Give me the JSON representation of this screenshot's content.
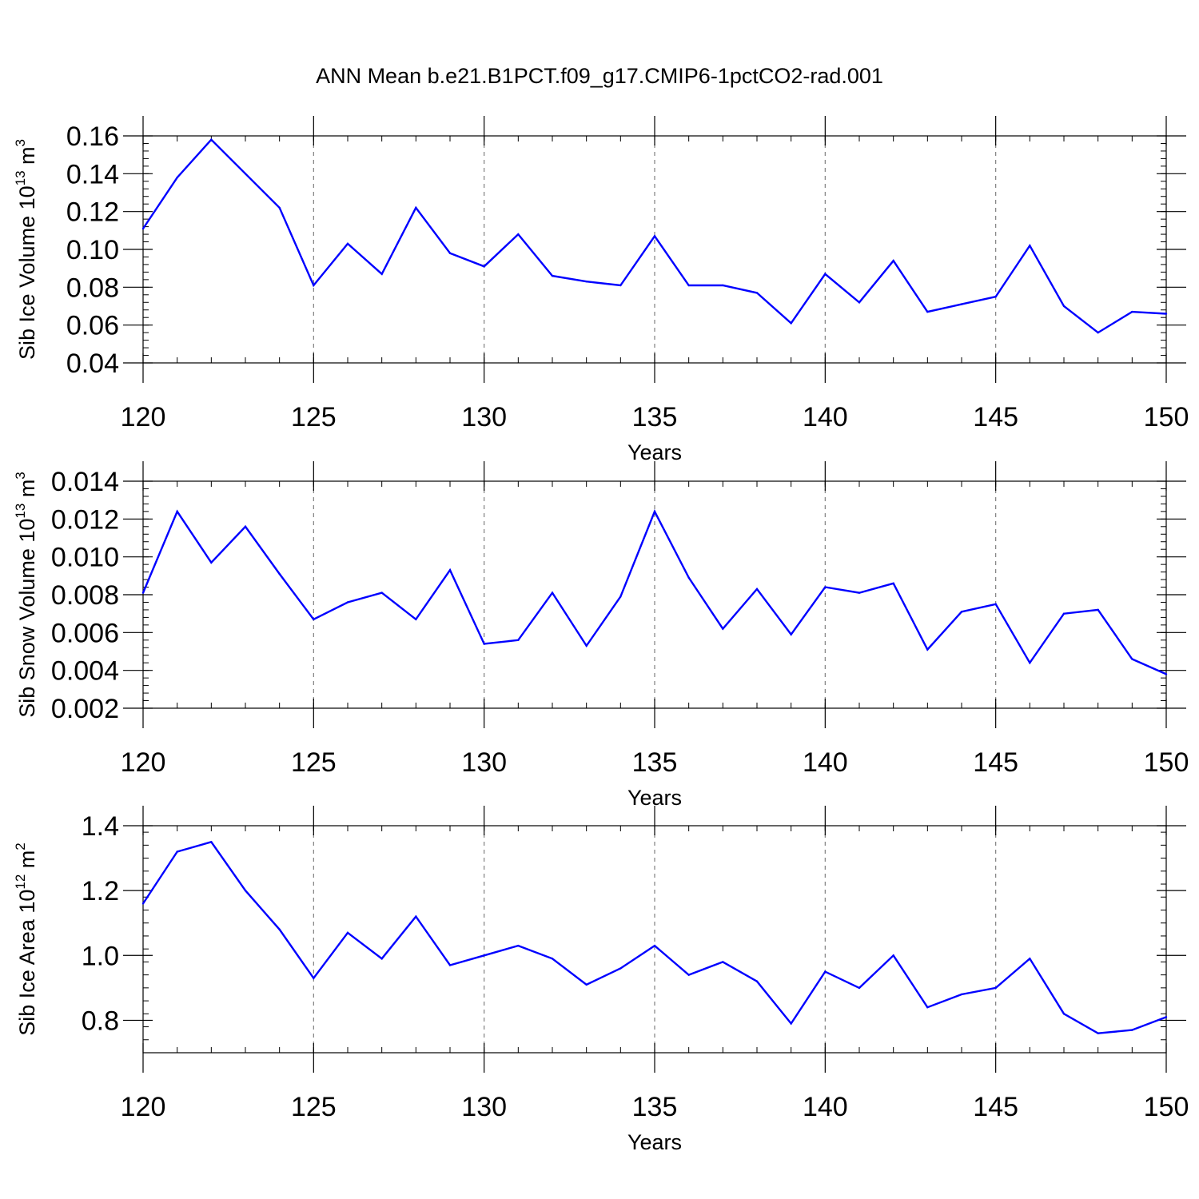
{
  "title": "ANN Mean b.e21.B1PCT.f09_g17.CMIP6-1pctCO2-rad.001",
  "colors": {
    "line": "#0000ff",
    "axis": "#000000",
    "grid": "#808080"
  },
  "chart_data": [
    {
      "type": "line",
      "xlabel": "Years",
      "ylabel_main": "Sib Ice Volume 10",
      "ylabel_exp": "13",
      "ylabel_unit": " m",
      "ylabel_unit_exp": "3",
      "xlim": [
        120,
        150
      ],
      "ylim": [
        0.04,
        0.16
      ],
      "xticks": [
        120,
        125,
        130,
        135,
        140,
        145,
        150
      ],
      "xtick_labels": [
        "120",
        "125",
        "130",
        "135",
        "140",
        "145",
        "150"
      ],
      "yticks": [
        0.04,
        0.06,
        0.08,
        0.1,
        0.12,
        0.14,
        0.16
      ],
      "ytick_labels": [
        "0.04",
        "0.06",
        "0.08",
        "0.10",
        "0.12",
        "0.14",
        "0.16"
      ],
      "grid": "vertical dashed at major x ticks",
      "x": [
        120,
        121,
        122,
        123,
        124,
        125,
        126,
        127,
        128,
        129,
        130,
        131,
        132,
        133,
        134,
        135,
        136,
        137,
        138,
        139,
        140,
        141,
        142,
        143,
        144,
        145,
        146,
        147,
        148,
        149,
        150
      ],
      "values": [
        0.111,
        0.138,
        0.158,
        0.14,
        0.122,
        0.081,
        0.103,
        0.087,
        0.122,
        0.098,
        0.091,
        0.108,
        0.086,
        0.083,
        0.081,
        0.107,
        0.081,
        0.081,
        0.077,
        0.061,
        0.087,
        0.072,
        0.094,
        0.067,
        0.071,
        0.075,
        0.102,
        0.07,
        0.056,
        0.067,
        0.066
      ]
    },
    {
      "type": "line",
      "xlabel": "Years",
      "ylabel_main": "Sib Snow Volume 10",
      "ylabel_exp": "13",
      "ylabel_unit": " m",
      "ylabel_unit_exp": "3",
      "xlim": [
        120,
        150
      ],
      "ylim": [
        0.002,
        0.014
      ],
      "xticks": [
        120,
        125,
        130,
        135,
        140,
        145,
        150
      ],
      "xtick_labels": [
        "120",
        "125",
        "130",
        "135",
        "140",
        "145",
        "150"
      ],
      "yticks": [
        0.002,
        0.004,
        0.006,
        0.008,
        0.01,
        0.012,
        0.014
      ],
      "ytick_labels": [
        "0.002",
        "0.004",
        "0.006",
        "0.008",
        "0.010",
        "0.012",
        "0.014"
      ],
      "grid": "vertical dashed at major x ticks",
      "x": [
        120,
        121,
        122,
        123,
        124,
        125,
        126,
        127,
        128,
        129,
        130,
        131,
        132,
        133,
        134,
        135,
        136,
        137,
        138,
        139,
        140,
        141,
        142,
        143,
        144,
        145,
        146,
        147,
        148,
        149,
        150
      ],
      "values": [
        0.0081,
        0.0124,
        0.0097,
        0.0116,
        0.0091,
        0.0067,
        0.0076,
        0.0081,
        0.0067,
        0.0093,
        0.0054,
        0.0056,
        0.0081,
        0.0053,
        0.0079,
        0.0124,
        0.0089,
        0.0062,
        0.0083,
        0.0059,
        0.0084,
        0.0081,
        0.0086,
        0.0051,
        0.0071,
        0.0075,
        0.0044,
        0.007,
        0.0072,
        0.0046,
        0.0038
      ]
    },
    {
      "type": "line",
      "xlabel": "Years",
      "ylabel_main": "Sib Ice Area 10",
      "ylabel_exp": "12",
      "ylabel_unit": " m",
      "ylabel_unit_exp": "2",
      "xlim": [
        120,
        150
      ],
      "ylim": [
        0.7,
        1.4
      ],
      "xticks": [
        120,
        125,
        130,
        135,
        140,
        145,
        150
      ],
      "xtick_labels": [
        "120",
        "125",
        "130",
        "135",
        "140",
        "145",
        "150"
      ],
      "yticks": [
        0.8,
        1.0,
        1.2,
        1.4
      ],
      "ytick_labels": [
        "0.8",
        "1.0",
        "1.2",
        "1.4"
      ],
      "grid": "vertical dashed at major x ticks",
      "x": [
        120,
        121,
        122,
        123,
        124,
        125,
        126,
        127,
        128,
        129,
        130,
        131,
        132,
        133,
        134,
        135,
        136,
        137,
        138,
        139,
        140,
        141,
        142,
        143,
        144,
        145,
        146,
        147,
        148,
        149,
        150
      ],
      "values": [
        1.16,
        1.32,
        1.35,
        1.2,
        1.08,
        0.93,
        1.07,
        0.99,
        1.12,
        0.97,
        1.0,
        1.03,
        0.99,
        0.91,
        0.96,
        1.03,
        0.94,
        0.98,
        0.92,
        0.79,
        0.95,
        0.9,
        1.0,
        0.84,
        0.88,
        0.9,
        0.99,
        0.82,
        0.76,
        0.77,
        0.81
      ]
    }
  ]
}
